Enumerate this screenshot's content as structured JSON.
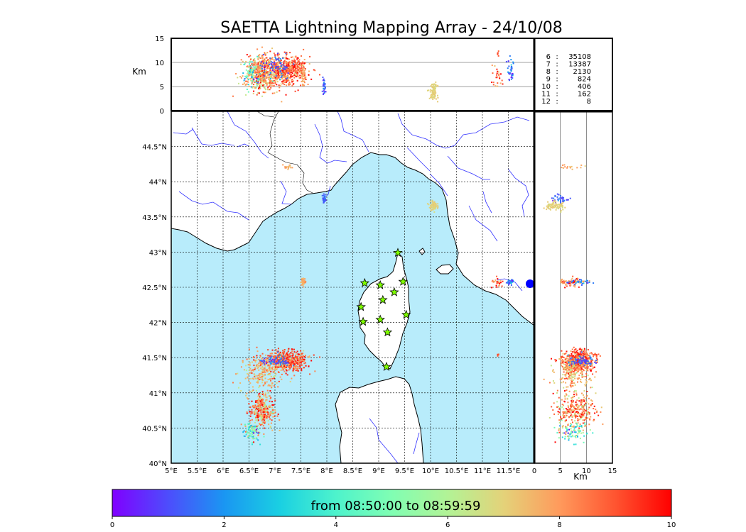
{
  "chart_data": {
    "type": "scatter",
    "title": "SAETTA Lightning Mapping Array - 24/10/08",
    "map": {
      "lon_range": [
        5,
        12
      ],
      "lat_range": [
        40,
        45
      ],
      "lon_ticks": [
        "5°E",
        "5.5°E",
        "6°E",
        "6.5°E",
        "7°E",
        "7.5°E",
        "8°E",
        "8.5°E",
        "9°E",
        "9.5°E",
        "10°E",
        "10.5°E",
        "11°E",
        "11.5°E"
      ],
      "lat_ticks": [
        "40°N",
        "40.5°N",
        "41°N",
        "41.5°N",
        "42°N",
        "42.5°N",
        "43°N",
        "43.5°N",
        "44°N",
        "44.5°N"
      ],
      "grid": true,
      "sea_color": "#b8ecfb",
      "land_color": "#ffffff",
      "river_color": "#3333ff",
      "station_color": "#7fff00"
    },
    "top_panel": {
      "ylabel": "Km",
      "y_range": [
        0,
        15
      ],
      "y_ticks": [
        "0",
        "5",
        "10",
        "15"
      ],
      "gridlines_km": [
        5,
        10
      ]
    },
    "side_panel": {
      "xlabel": "Km",
      "x_range": [
        0,
        15
      ],
      "x_ticks": [
        "0",
        "5",
        "10",
        "15"
      ],
      "gridlines_km": [
        5,
        10
      ]
    },
    "source_counts": [
      {
        "label": "6",
        "count": "35108",
        "highlight": false
      },
      {
        "label": "7",
        "count": "13387",
        "highlight": true
      },
      {
        "label": "8",
        "count": "2130",
        "highlight": false
      },
      {
        "label": "9",
        "count": "824",
        "highlight": false
      },
      {
        "label": "10",
        "count": "406",
        "highlight": false
      },
      {
        "label": "11",
        "count": "162",
        "highlight": false
      },
      {
        "label": "12",
        "count": "8",
        "highlight": false
      }
    ],
    "colorbar": {
      "label": "from 08:50:00 to 08:59:59",
      "range": [
        0,
        10
      ],
      "ticks": [
        "0",
        "2",
        "4",
        "6",
        "8",
        "10"
      ],
      "colormap": "rainbow"
    },
    "stations": [
      [
        9.37,
        42.99
      ],
      [
        8.73,
        42.56
      ],
      [
        9.03,
        42.53
      ],
      [
        9.47,
        42.58
      ],
      [
        8.66,
        42.22
      ],
      [
        9.08,
        42.32
      ],
      [
        9.3,
        42.43
      ],
      [
        9.53,
        42.11
      ],
      [
        8.7,
        42.01
      ],
      [
        9.03,
        42.04
      ],
      [
        9.17,
        41.86
      ],
      [
        9.15,
        41.37
      ]
    ],
    "clusters": [
      {
        "lon": 7.2,
        "lat": 41.45,
        "lon_spread": 0.35,
        "lat_spread": 0.12,
        "alt": 8.5,
        "alt_spread": 2.5,
        "time": 8.8,
        "time_spread": 0.9,
        "n": 520
      },
      {
        "lon": 6.75,
        "lat": 41.3,
        "lon_spread": 0.35,
        "lat_spread": 0.22,
        "alt": 7.5,
        "alt_spread": 2.5,
        "time": 7.6,
        "time_spread": 0.7,
        "n": 220
      },
      {
        "lon": 6.75,
        "lat": 40.75,
        "lon_spread": 0.2,
        "lat_spread": 0.22,
        "alt": 8.0,
        "alt_spread": 3.0,
        "time": 8.3,
        "time_spread": 1.3,
        "n": 300
      },
      {
        "lon": 6.55,
        "lat": 40.45,
        "lon_spread": 0.12,
        "lat_spread": 0.12,
        "alt": 7.0,
        "alt_spread": 2.5,
        "time": 4.5,
        "time_spread": 1.8,
        "n": 90
      },
      {
        "lon": 7.0,
        "lat": 41.45,
        "lon_spread": 0.25,
        "lat_spread": 0.06,
        "alt": 9.0,
        "alt_spread": 2.0,
        "time": 1.3,
        "time_spread": 0.6,
        "n": 70
      },
      {
        "lon": 7.55,
        "lat": 42.58,
        "lon_spread": 0.04,
        "lat_spread": 0.04,
        "alt": 7.5,
        "alt_spread": 2.0,
        "time": 7.8,
        "time_spread": 0.3,
        "n": 40
      },
      {
        "lon": 7.95,
        "lat": 43.76,
        "lon_spread": 0.03,
        "lat_spread": 0.05,
        "alt": 5.0,
        "alt_spread": 1.5,
        "time": 1.2,
        "time_spread": 0.5,
        "n": 30
      },
      {
        "lon": 10.05,
        "lat": 43.66,
        "lon_spread": 0.06,
        "lat_spread": 0.05,
        "alt": 4.0,
        "alt_spread": 1.5,
        "time": 7.0,
        "time_spread": 0.2,
        "n": 80
      },
      {
        "lon": 7.25,
        "lat": 44.2,
        "lon_spread": 0.08,
        "lat_spread": 0.03,
        "alt": 7.0,
        "alt_spread": 2.0,
        "time": 7.6,
        "time_spread": 0.4,
        "n": 15
      },
      {
        "lon": 11.55,
        "lat": 42.58,
        "lon_spread": 0.05,
        "lat_spread": 0.03,
        "alt": 8.5,
        "alt_spread": 2.0,
        "time": 1.5,
        "time_spread": 0.6,
        "n": 35
      },
      {
        "lon": 11.3,
        "lat": 42.56,
        "lon_spread": 0.12,
        "lat_spread": 0.06,
        "alt": 7.5,
        "alt_spread": 2.0,
        "time": 8.5,
        "time_spread": 1.0,
        "n": 25
      },
      {
        "lon": 11.3,
        "lat": 41.53,
        "lon_spread": 0.02,
        "lat_spread": 0.02,
        "alt": 12.0,
        "alt_spread": 1.0,
        "time": 9.0,
        "time_spread": 0.3,
        "n": 6
      }
    ]
  }
}
